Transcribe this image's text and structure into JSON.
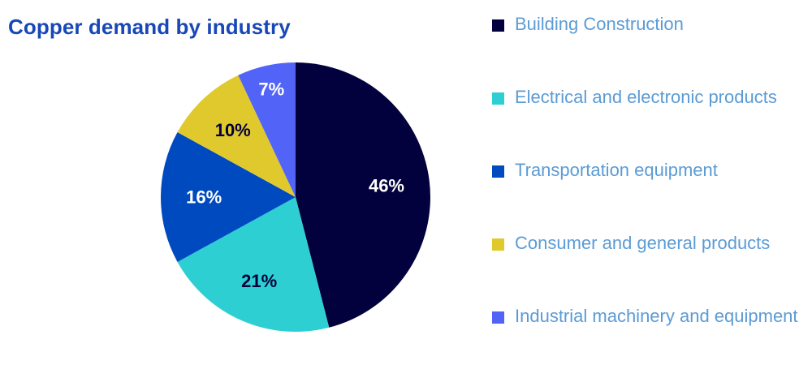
{
  "chart_data": {
    "type": "pie",
    "title": "Copper demand by industry",
    "categories": [
      "Building Construction",
      "Electrical and electronic products",
      "Transportation equipment",
      "Consumer and general products",
      "Industrial machinery and equipment"
    ],
    "values": [
      46,
      21,
      16,
      10,
      7
    ],
    "value_labels": [
      "46%",
      "21%",
      "16%",
      "10%",
      "7%"
    ],
    "colors": [
      "#02003d",
      "#2ecfd3",
      "#004ac0",
      "#e0c92c",
      "#5264f7"
    ],
    "label_colors": [
      "#ffffff",
      "#02003d",
      "#ffffff",
      "#02003d",
      "#ffffff"
    ],
    "legend": "right",
    "start_angle": "top, clockwise"
  }
}
